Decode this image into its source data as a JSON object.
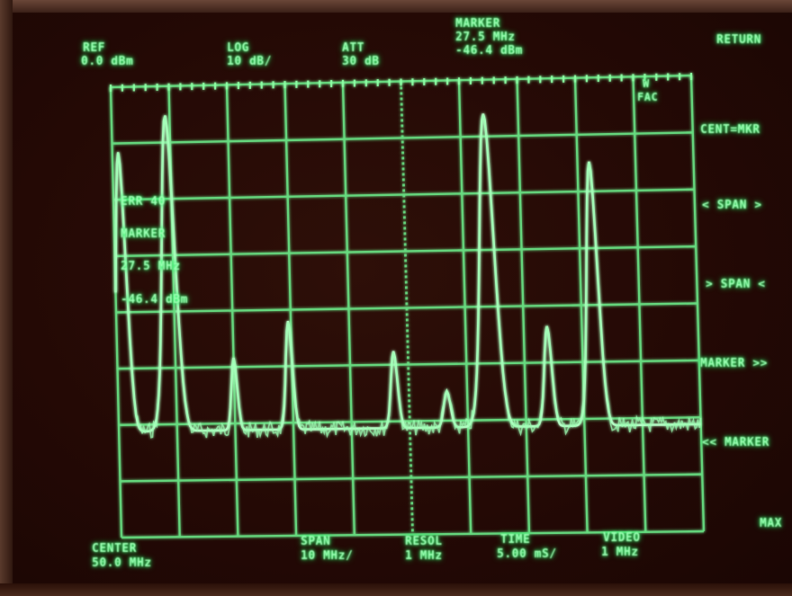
{
  "header": {
    "ref": {
      "label": "REF",
      "value": "0.0 dBm"
    },
    "log": {
      "label": "LOG",
      "value": "10 dB/"
    },
    "att": {
      "label": "ATT",
      "value": "30 dB"
    },
    "marker": {
      "label": "MARKER",
      "freq": "27.5 MHz",
      "level": "-46.4 dBm"
    }
  },
  "graticule_flag": {
    "line1": "W",
    "line2": "FAC"
  },
  "overlay": {
    "line1": "ERR 40",
    "line2": "MARKER",
    "line3": "27.5 MHz",
    "line4": "-46.4 dBm"
  },
  "softkeys": [
    {
      "label": "RETURN"
    },
    {
      "label": "CENT=MKR"
    },
    {
      "label": "< SPAN >"
    },
    {
      "label": "> SPAN <"
    },
    {
      "label": "MARKER >>"
    },
    {
      "label": "<< MARKER"
    },
    {
      "label": "MAX"
    }
  ],
  "footer": {
    "center": {
      "label": "CENTER",
      "value": "50.0 MHz"
    },
    "span": {
      "label": "SPAN",
      "value": "10 MHz/"
    },
    "resol": {
      "label": "RESOL",
      "value": "1 MHz"
    },
    "time": {
      "label": "TIME",
      "value": "5.00 mS/"
    },
    "video": {
      "label": "VIDEO",
      "value": "1 MHz"
    }
  },
  "colors": {
    "phosphor": "#7dff9a",
    "background": "#240905"
  }
}
